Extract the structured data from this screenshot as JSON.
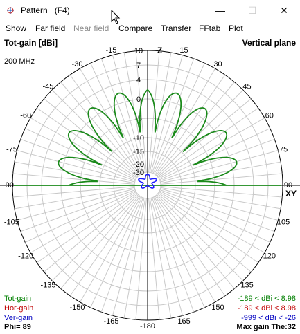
{
  "window": {
    "title": "Pattern   (F4)",
    "minimize_glyph": "—",
    "maximize_glyph": "☐",
    "close_glyph": "✕"
  },
  "menu": {
    "items": [
      {
        "label": "Show",
        "enabled": true
      },
      {
        "label": "Far field",
        "enabled": true
      },
      {
        "label": "Near field",
        "enabled": false
      },
      {
        "label": "Compare",
        "enabled": true
      },
      {
        "label": "Transfer",
        "enabled": true
      },
      {
        "label": "FFtab",
        "enabled": true
      },
      {
        "label": "Plot",
        "enabled": true
      }
    ]
  },
  "plot": {
    "gain_type": "Tot-gain [dBi]",
    "plane": "Vertical plane",
    "frequency": "200 MHz",
    "z_label": "Z",
    "xy_label": "XY",
    "angle_labels": [
      "-15",
      "15",
      "-30",
      "30",
      "-45",
      "45",
      "-60",
      "60",
      "-75",
      "75",
      "-90",
      "90",
      "-105",
      "105",
      "-120",
      "120",
      "-135",
      "135",
      "-150",
      "150",
      "-165",
      "165",
      "-180"
    ],
    "ring_labels": [
      "10",
      "7",
      "4",
      "0",
      "-5",
      "-10",
      "-15",
      "-20",
      "-30"
    ],
    "legend": [
      {
        "name": "Tot-gain",
        "range": "-189 < dBi < 8.98",
        "color": "#008000"
      },
      {
        "name": "Hor-gain",
        "range": "-189 < dBi < 8.98",
        "color": "#c00000"
      },
      {
        "name": "Ver-gain",
        "range": "-999 < dBi < -26",
        "color": "#0000c0"
      }
    ],
    "phi": "Phi= 89",
    "max_gain": "Max gain The:32",
    "colors": {
      "tot": "#1a8a1a",
      "ver": "#1a1aff",
      "grid": "#c8c8c8",
      "axis": "#000000"
    }
  },
  "chart_data": {
    "type": "polar",
    "unit": "dBi",
    "max_gain_dbi": 8.98,
    "max_gain_theta_deg": 32,
    "phi_deg": 89
  }
}
